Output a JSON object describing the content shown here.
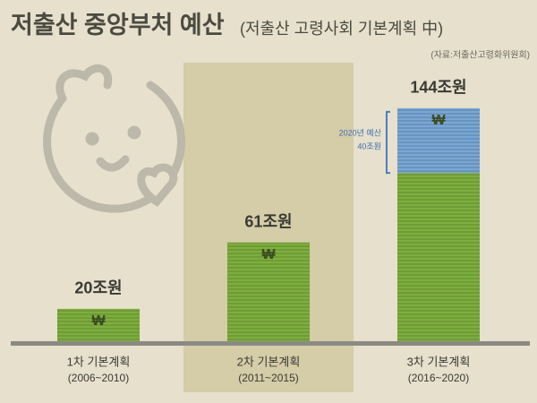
{
  "chart_data": {
    "type": "bar",
    "title": "저출산 중앙부처 예산",
    "subtitle": "(저출산 고령사회 기본계획 中)",
    "source": "(자료:저출산고령화위원회)",
    "categories": [
      "1차 기본계획",
      "2차 기본계획",
      "3차 기본계획"
    ],
    "periods": [
      "(2006~2010)",
      "(2011~2015)",
      "(2016~2020)"
    ],
    "values": [
      20,
      61,
      144
    ],
    "value_labels": [
      "20조원",
      "61조원",
      "144조원"
    ],
    "color": "#7fae3e",
    "currency_symbol": "₩",
    "annotation": {
      "note": "2020년 예산",
      "value": 40,
      "label": "40조원",
      "color": "#7aa6d8"
    },
    "ylim": [
      0,
      150
    ]
  }
}
